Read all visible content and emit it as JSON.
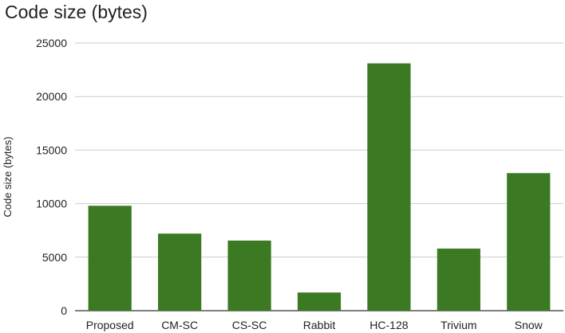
{
  "chart_data": {
    "type": "bar",
    "title": "Code size (bytes)",
    "xlabel": "",
    "ylabel": "Code size (bytes)",
    "categories": [
      "Proposed",
      "CM-SC",
      "CS-SC",
      "Rabbit",
      "HC-128",
      "Trivium",
      "Snow"
    ],
    "values": [
      9800,
      7200,
      6550,
      1700,
      23100,
      5800,
      12850
    ],
    "ylim": [
      0,
      25000
    ],
    "yticks": [
      0,
      5000,
      10000,
      15000,
      20000,
      25000
    ],
    "grid": true,
    "legend": "none",
    "bar_color": "#3b7a23"
  }
}
